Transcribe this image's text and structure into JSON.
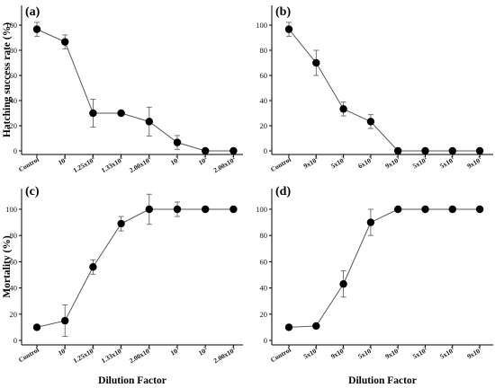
{
  "chart_data": [
    {
      "type": "line",
      "panel": "(a)",
      "ylabel": "Hatching success rate (%)",
      "xlabel": "",
      "ylim": [
        0,
        110
      ],
      "yticks": [
        0,
        20,
        40,
        60,
        80,
        100
      ],
      "categories": [
        {
          "base": "Control",
          "exp": ""
        },
        {
          "base": "10",
          "exp": "4"
        },
        {
          "base": "1.25x10",
          "exp": "4"
        },
        {
          "base": "1.33x10",
          "exp": "4"
        },
        {
          "base": "2.00x10",
          "exp": "4"
        },
        {
          "base": "10",
          "exp": "3"
        },
        {
          "base": "10",
          "exp": "2"
        },
        {
          "base": "2.00x10",
          "exp": "2"
        }
      ],
      "values": [
        96.7,
        86.7,
        30,
        30,
        23.3,
        6.7,
        0,
        0
      ],
      "errors": [
        5.5,
        5.5,
        11,
        0,
        11.5,
        5.5,
        0,
        0
      ]
    },
    {
      "type": "line",
      "panel": "(b)",
      "ylabel": "",
      "xlabel": "",
      "ylim": [
        0,
        110
      ],
      "yticks": [
        0,
        20,
        40,
        60,
        80,
        100
      ],
      "categories": [
        {
          "base": "Control",
          "exp": ""
        },
        {
          "base": "9x10",
          "exp": "4"
        },
        {
          "base": "5x10",
          "exp": "3"
        },
        {
          "base": "6x10",
          "exp": "3"
        },
        {
          "base": "9x10",
          "exp": "3"
        },
        {
          "base": "5x10",
          "exp": "2"
        },
        {
          "base": "5x10",
          "exp": "1"
        },
        {
          "base": "9x10",
          "exp": "1"
        }
      ],
      "values": [
        96.7,
        70,
        33.3,
        23.3,
        0,
        0,
        0,
        0
      ],
      "errors": [
        5.5,
        10,
        5.5,
        5.5,
        0,
        0,
        0,
        0
      ]
    },
    {
      "type": "line",
      "panel": "(c)",
      "ylabel": "Mortality (%)",
      "xlabel": "Dilution Factor",
      "ylim": [
        0,
        115
      ],
      "yticks": [
        0,
        20,
        40,
        60,
        80,
        100
      ],
      "categories": [
        {
          "base": "Control",
          "exp": ""
        },
        {
          "base": "10",
          "exp": "4"
        },
        {
          "base": "1.25x10",
          "exp": "4"
        },
        {
          "base": "1.33x10",
          "exp": "4"
        },
        {
          "base": "2.00x10",
          "exp": "4"
        },
        {
          "base": "10",
          "exp": "3"
        },
        {
          "base": "10",
          "exp": "2"
        },
        {
          "base": "2.00x10",
          "exp": "2"
        }
      ],
      "values": [
        10,
        15,
        56,
        89,
        100,
        100,
        100,
        100
      ],
      "errors": [
        0,
        12,
        5.5,
        5.5,
        11.5,
        5.5,
        0,
        0
      ]
    },
    {
      "type": "line",
      "panel": "(d)",
      "ylabel": "",
      "xlabel": "Dilution Factor",
      "ylim": [
        0,
        115
      ],
      "yticks": [
        0,
        20,
        40,
        60,
        80,
        100
      ],
      "categories": [
        {
          "base": "Control",
          "exp": ""
        },
        {
          "base": "5x10",
          "exp": "4"
        },
        {
          "base": "9x10",
          "exp": "4"
        },
        {
          "base": "5x10",
          "exp": "3"
        },
        {
          "base": "9x10",
          "exp": "3"
        },
        {
          "base": "5x10",
          "exp": "2"
        },
        {
          "base": "5x10",
          "exp": "1"
        },
        {
          "base": "9x10",
          "exp": "1"
        }
      ],
      "values": [
        10,
        11,
        43,
        90,
        100,
        100,
        100,
        100
      ],
      "errors": [
        0,
        0,
        10,
        10,
        0,
        0,
        0,
        0
      ]
    }
  ],
  "colors": {
    "line": "#555555",
    "marker": "#000000",
    "axis": "#000000"
  }
}
